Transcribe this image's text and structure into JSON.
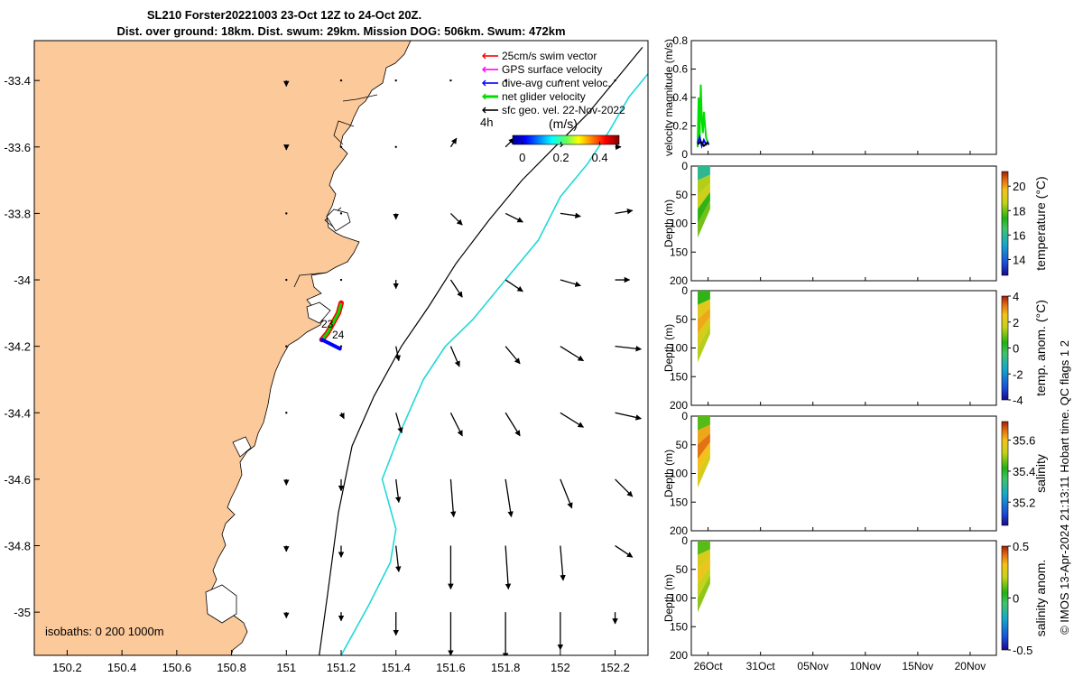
{
  "title": {
    "line1": "SL210 Forster20221003 23-Oct 12Z to 24-Oct 20Z.",
    "line2": "Dist. over ground: 18km. Dist. swum: 29km. Mission DOG: 506km. Swum: 472km"
  },
  "credit": "© IMOS 13-Apr-2024 21:13:11 Hobart time. QC flags 1  2",
  "colors": {
    "land": "#fbc99a",
    "coast": "#000000",
    "isobath_200": "#000000",
    "isobath_1000": "#22d8d8",
    "swim_vector": "#ff0000",
    "gps_velocity": "#ff00ff",
    "dive_avg": "#0000ff",
    "net_glider": "#00dd00",
    "sfc_geo": "#000000"
  },
  "chart_data": [
    {
      "type": "map",
      "xlim": [
        150.08,
        152.32
      ],
      "ylim": [
        -35.13,
        -33.28
      ],
      "x_ticks": [
        150.2,
        150.4,
        150.6,
        150.8,
        151,
        151.2,
        151.4,
        151.6,
        151.8,
        152,
        152.2
      ],
      "x_tick_labels": [
        "150.2",
        "150.4",
        "150.6",
        "150.8",
        "151",
        "151.2",
        "151.4",
        "151.6",
        "151.8",
        "152",
        "152.2"
      ],
      "y_ticks": [
        -33.4,
        -33.6,
        -33.8,
        -34,
        -34.2,
        -34.4,
        -34.6,
        -34.8,
        -35
      ],
      "y_tick_labels": [
        "-33.4",
        "-33.6",
        "-33.8",
        "-34",
        "-34.2",
        "-34.4",
        "-34.6",
        "-34.8",
        "-35"
      ],
      "legend": {
        "placement": "top-right",
        "entries": [
          "25cm/s swim vector",
          "GPS surface velocity",
          "dive-avg current veloc.",
          "net glider velocity",
          "sfc geo. vel. 22-Nov-2022"
        ],
        "time_label": "4h"
      },
      "colorbar": {
        "label": "(m/s)",
        "range": [
          -0.05,
          0.5
        ],
        "ticks": [
          0,
          0.2,
          0.4
        ],
        "tick_labels": [
          "0",
          "0.2",
          "0.4"
        ],
        "colormap": "jet"
      },
      "track_labels": [
        "23",
        "24"
      ],
      "isobaths_label": "isobaths: 0   200  1000m",
      "isobaths": [
        {
          "depth": 200,
          "lon": [
            151.12,
            151.15,
            151.19,
            151.24,
            151.32,
            151.42,
            151.52,
            151.62,
            151.74,
            151.86,
            151.98,
            152.1,
            152.2,
            152.3
          ],
          "lat": [
            -35.13,
            -34.95,
            -34.7,
            -34.5,
            -34.35,
            -34.2,
            -34.08,
            -33.95,
            -33.82,
            -33.7,
            -33.6,
            -33.5,
            -33.4,
            -33.3
          ]
        },
        {
          "depth": 1000,
          "lon": [
            151.2,
            151.3,
            151.38,
            151.4,
            151.35,
            151.42,
            151.5,
            151.58,
            151.68,
            151.8,
            151.92,
            152.0,
            152.1,
            152.18,
            152.25,
            152.32
          ],
          "lat": [
            -35.13,
            -34.98,
            -34.85,
            -34.75,
            -34.6,
            -34.45,
            -34.3,
            -34.2,
            -34.12,
            -34.0,
            -33.88,
            -33.75,
            -33.65,
            -33.55,
            -33.45,
            -33.38
          ]
        }
      ],
      "glider_track": {
        "lon": [
          151.13,
          151.15,
          151.17,
          151.19,
          151.2
        ],
        "lat": [
          -34.18,
          -34.16,
          -34.13,
          -34.1,
          -34.07
        ]
      },
      "geo_velocity_vectors": {
        "lon": [
          151.0,
          151.2,
          151.4,
          151.6,
          151.8,
          152.0,
          152.2
        ],
        "lat": [
          -33.4,
          -33.6,
          -33.8,
          -34.0,
          -34.2,
          -34.4,
          -34.6,
          -34.8,
          -35.0
        ],
        "u": [
          [
            0.0,
            0.0,
            0.0,
            0.0,
            0.0,
            0.0,
            0.0
          ],
          [
            0.0,
            0.0,
            0.0,
            0.02,
            0.03,
            0.03,
            0.02
          ],
          [
            0.0,
            0.0,
            0.0,
            0.04,
            0.06,
            0.07,
            0.06
          ],
          [
            0.0,
            0.0,
            0.0,
            0.04,
            0.06,
            0.07,
            0.05
          ],
          [
            0.0,
            0.0,
            0.01,
            0.03,
            0.05,
            0.08,
            0.09
          ],
          [
            0.0,
            0.01,
            0.02,
            0.04,
            0.05,
            0.08,
            0.09
          ],
          [
            0.0,
            0.0,
            0.01,
            0.01,
            0.02,
            0.04,
            0.06
          ],
          [
            0.0,
            0.0,
            0.01,
            0.0,
            0.01,
            0.01,
            0.06
          ],
          [
            0.0,
            0.0,
            0.0,
            0.0,
            0.0,
            0.0,
            0.0
          ]
        ],
        "v": [
          [
            -0.02,
            0.0,
            0.0,
            0.0,
            0.0,
            0.0,
            0.0
          ],
          [
            -0.01,
            0.0,
            0.0,
            0.03,
            0.03,
            0.03,
            0.0
          ],
          [
            0.0,
            0.0,
            -0.02,
            -0.04,
            -0.03,
            -0.01,
            0.01
          ],
          [
            0.0,
            0.0,
            -0.03,
            -0.06,
            -0.04,
            -0.02,
            0.0
          ],
          [
            0.0,
            0.0,
            -0.05,
            -0.07,
            -0.06,
            -0.05,
            -0.01
          ],
          [
            0.0,
            -0.02,
            -0.07,
            -0.08,
            -0.08,
            -0.05,
            -0.02
          ],
          [
            -0.02,
            -0.04,
            -0.08,
            -0.13,
            -0.13,
            -0.1,
            -0.06
          ],
          [
            -0.02,
            -0.04,
            -0.09,
            -0.15,
            -0.15,
            -0.12,
            -0.04
          ],
          [
            -0.02,
            -0.03,
            -0.08,
            -0.15,
            -0.16,
            -0.13,
            -0.04
          ]
        ]
      }
    },
    {
      "type": "line",
      "ylabel": "velocity magnitude (m/s)",
      "ylim": [
        0,
        0.8
      ],
      "y_ticks": [
        0,
        0.2,
        0.4,
        0.6,
        0.8
      ],
      "y_tick_labels": [
        "0",
        "0.2",
        "0.4",
        "0.6",
        "0.8"
      ],
      "xlim_days": [
        24.4,
        53.5
      ],
      "series": [
        {
          "color": "#00dd00",
          "x": [
            25.0,
            25.1,
            25.2,
            25.3,
            25.4,
            25.5,
            25.6,
            25.8,
            26.0
          ],
          "y": [
            0.05,
            0.4,
            0.12,
            0.49,
            0.25,
            0.15,
            0.3,
            0.12,
            0.08
          ]
        },
        {
          "color": "#0000ff",
          "x": [
            25.0,
            25.2,
            25.4,
            25.6,
            25.8,
            26.0
          ],
          "y": [
            0.08,
            0.12,
            0.06,
            0.1,
            0.07,
            0.09
          ]
        },
        {
          "color": "#000000",
          "x": [
            25.0,
            25.3,
            25.6,
            25.9,
            26.1
          ],
          "y": [
            0.07,
            0.09,
            0.06,
            0.08,
            0.07
          ]
        }
      ]
    },
    {
      "type": "section",
      "ylabel": "Depth (m)",
      "ylim": [
        200,
        0
      ],
      "y_ticks": [
        0,
        50,
        100,
        150,
        200
      ],
      "y_tick_labels": [
        "0",
        "50",
        "100",
        "150",
        "200"
      ],
      "colorbar": {
        "label": "temperature (°C)",
        "range": [
          12.7,
          21.2
        ],
        "ticks": [
          14,
          16,
          18,
          20
        ],
        "tick_labels": [
          "14",
          "16",
          "18",
          "20"
        ]
      },
      "section_values": [
        16,
        18.5,
        18.8,
        17.5,
        18
      ],
      "x_days": [
        25.0,
        25.6,
        26.2
      ],
      "max_depth": [
        125,
        100,
        75
      ]
    },
    {
      "type": "section",
      "ylabel": "Depth (m)",
      "ylim": [
        200,
        0
      ],
      "y_ticks": [
        0,
        50,
        100,
        150,
        200
      ],
      "y_tick_labels": [
        "0",
        "50",
        "100",
        "150",
        "200"
      ],
      "colorbar": {
        "label": "temp. anom. (°C)",
        "range": [
          -4,
          4
        ],
        "ticks": [
          -4,
          -2,
          0,
          2,
          4
        ],
        "tick_labels": [
          "-4",
          "-2",
          "0",
          "2",
          "4"
        ]
      },
      "section_values": [
        0.5,
        2.2,
        2.8,
        2.0,
        1.5
      ],
      "x_days": [
        25.0,
        25.6,
        26.2
      ],
      "max_depth": [
        125,
        100,
        75
      ]
    },
    {
      "type": "section",
      "ylabel": "Depth (m)",
      "ylim": [
        200,
        0
      ],
      "y_ticks": [
        0,
        50,
        100,
        150,
        200
      ],
      "y_tick_labels": [
        "0",
        "50",
        "100",
        "150",
        "200"
      ],
      "colorbar": {
        "label": "salinity",
        "range": [
          35.05,
          35.72
        ],
        "ticks": [
          35.2,
          35.4,
          35.6
        ],
        "tick_labels": [
          "35.2",
          "35.4",
          "35.6"
        ]
      },
      "section_values": [
        35.45,
        35.62,
        35.66,
        35.6,
        35.55
      ],
      "x_days": [
        25.0,
        25.6,
        26.2
      ],
      "max_depth": [
        125,
        100,
        75
      ]
    },
    {
      "type": "section",
      "ylabel": "Depth (m)",
      "ylim": [
        200,
        0
      ],
      "y_ticks": [
        0,
        50,
        100,
        150,
        200
      ],
      "y_tick_labels": [
        "0",
        "50",
        "100",
        "150",
        "200"
      ],
      "colorbar": {
        "label": "salinity anom.",
        "range": [
          -0.5,
          0.5
        ],
        "ticks": [
          -0.5,
          0,
          0.5
        ],
        "tick_labels": [
          "-0.5",
          "0",
          "0.5"
        ]
      },
      "section_values": [
        0.1,
        0.25,
        0.3,
        0.2,
        0.15
      ],
      "x_days": [
        25.0,
        25.6,
        26.2
      ],
      "max_depth": [
        125,
        100,
        75
      ],
      "x_ticks_days": [
        26,
        31,
        36,
        41,
        46,
        51
      ],
      "x_tick_labels": [
        "26Oct",
        "31Oct",
        "05Nov",
        "10Nov",
        "15Nov",
        "20Nov"
      ]
    }
  ]
}
